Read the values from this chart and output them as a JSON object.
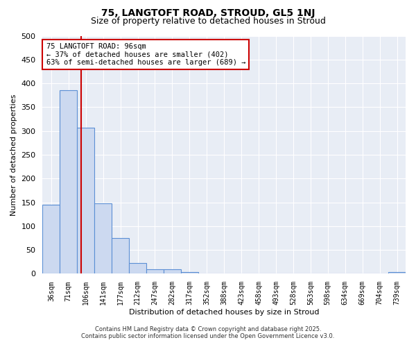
{
  "title": "75, LANGTOFT ROAD, STROUD, GL5 1NJ",
  "subtitle": "Size of property relative to detached houses in Stroud",
  "xlabel": "Distribution of detached houses by size in Stroud",
  "ylabel": "Number of detached properties",
  "bin_labels": [
    "36sqm",
    "71sqm",
    "106sqm",
    "141sqm",
    "177sqm",
    "212sqm",
    "247sqm",
    "282sqm",
    "317sqm",
    "352sqm",
    "388sqm",
    "423sqm",
    "458sqm",
    "493sqm",
    "528sqm",
    "563sqm",
    "598sqm",
    "634sqm",
    "669sqm",
    "704sqm",
    "739sqm"
  ],
  "bar_heights": [
    145,
    385,
    307,
    148,
    75,
    22,
    9,
    9,
    3,
    1,
    1,
    1,
    1,
    1,
    1,
    1,
    1,
    1,
    0,
    0,
    4
  ],
  "bar_color": "#ccd9f0",
  "bar_edge_color": "#5b8fd4",
  "vline_x_index": 1.71,
  "vline_color": "#cc0000",
  "annotation_text": "75 LANGTOFT ROAD: 96sqm\n← 37% of detached houses are smaller (402)\n63% of semi-detached houses are larger (689) →",
  "annotation_box_color": "white",
  "annotation_box_edge_color": "#cc0000",
  "ylim": [
    0,
    500
  ],
  "yticks": [
    0,
    50,
    100,
    150,
    200,
    250,
    300,
    350,
    400,
    450,
    500
  ],
  "bg_color": "#e8edf5",
  "footnote1": "Contains HM Land Registry data © Crown copyright and database right 2025.",
  "footnote2": "Contains public sector information licensed under the Open Government Licence v3.0.",
  "title_fontsize": 10,
  "subtitle_fontsize": 9
}
